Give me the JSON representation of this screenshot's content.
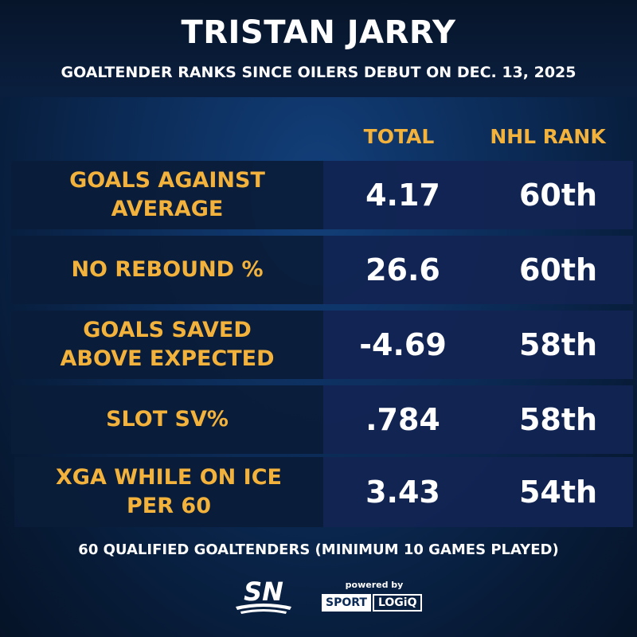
{
  "title": "TRISTAN JARRY",
  "subtitle": "GOALTENDER RANKS SINCE OILERS DEBUT ON DEC. 13, 2025",
  "columns": {
    "total": "TOTAL",
    "rank": "NHL RANK"
  },
  "rows": [
    {
      "label": "GOALS AGAINST\nAVERAGE",
      "total": "4.17",
      "rank": "60th"
    },
    {
      "label": "NO REBOUND %",
      "total": "26.6",
      "rank": "60th"
    },
    {
      "label": "GOALS SAVED\nABOVE EXPECTED",
      "total": "-4.69",
      "rank": "58th"
    },
    {
      "label": "SLOT SV%",
      "total": ".784",
      "rank": "58th"
    },
    {
      "label": "XGA WHILE ON ICE\nPER 60",
      "total": "3.43",
      "rank": "54th"
    }
  ],
  "footnote": "60 QUALIFIED GOALTENDERS (MINIMUM 10 GAMES PLAYED)",
  "branding": {
    "sn": "SN",
    "powered_by": "powered by",
    "sport": "SPORT",
    "logiq": "LOGiQ"
  },
  "colors": {
    "accent": "#f2b23c",
    "text": "#ffffff",
    "background": "#0b2a55"
  }
}
